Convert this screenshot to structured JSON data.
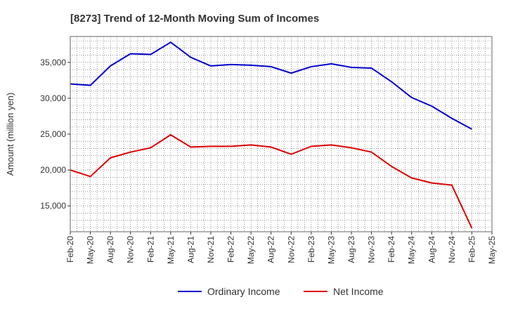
{
  "chart_data": {
    "type": "line",
    "title": "[8273]  Trend of 12-Month Moving Sum of Incomes",
    "xlabel": "",
    "ylabel": "Amount (million yen)",
    "x_tick_labels": [
      "Feb-20",
      "May-20",
      "Aug-20",
      "Nov-20",
      "Feb-21",
      "May-21",
      "Aug-21",
      "Nov-21",
      "Feb-22",
      "May-22",
      "Aug-22",
      "Nov-22",
      "Feb-23",
      "May-23",
      "Aug-23",
      "Nov-23",
      "Feb-24",
      "May-24",
      "Aug-24",
      "Nov-24",
      "Feb-25",
      "May-25"
    ],
    "y_ticks": [
      15000,
      20000,
      25000,
      30000,
      35000
    ],
    "y_tick_labels": [
      "15,000",
      "20,000",
      "25,000",
      "30,000",
      "35,000"
    ],
    "ylim": [
      11400,
      38600
    ],
    "grid": true,
    "legend_position": "bottom",
    "categories": [
      "Feb-20",
      "May-20",
      "Aug-20",
      "Nov-20",
      "Feb-21",
      "May-21",
      "Aug-21",
      "Nov-21",
      "Feb-22",
      "May-22",
      "Aug-22",
      "Nov-22",
      "Feb-23",
      "May-23",
      "Aug-23",
      "Nov-23",
      "Feb-24",
      "May-24",
      "Aug-24",
      "Nov-24",
      "Feb-25"
    ],
    "series": [
      {
        "name": "Ordinary Income",
        "color": "#0000cc",
        "values": [
          32000,
          31800,
          34500,
          36200,
          36100,
          37800,
          35700,
          34500,
          34700,
          34600,
          34400,
          33500,
          34400,
          34800,
          34300,
          34200,
          32300,
          30100,
          28900,
          27200,
          25700
        ]
      },
      {
        "name": "Net Income",
        "color": "#dd0000",
        "values": [
          20000,
          19100,
          21700,
          22500,
          23100,
          24900,
          23200,
          23300,
          23300,
          23500,
          23200,
          22200,
          23300,
          23500,
          23100,
          22500,
          20500,
          18900,
          18200,
          17900,
          11900
        ]
      }
    ]
  }
}
